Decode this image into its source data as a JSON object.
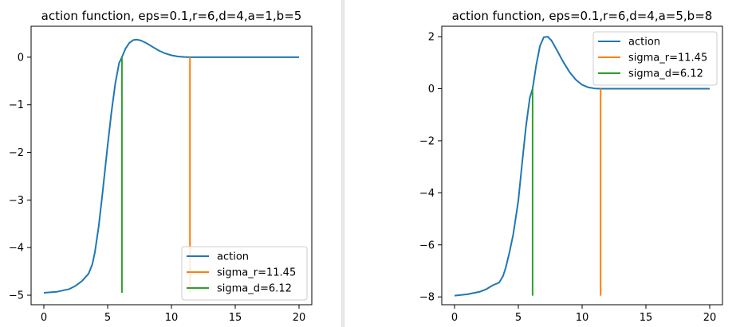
{
  "chart_data": [
    {
      "type": "line",
      "title": "action function, eps=0.1,r=6,d=4,a=1,b=5",
      "xlabel": "",
      "ylabel": "",
      "xlim": [
        -1,
        21
      ],
      "ylim": [
        -5.2,
        0.65
      ],
      "xticks": [
        "0",
        "5",
        "10",
        "15",
        "20"
      ],
      "xtick_values": [
        0,
        5,
        10,
        15,
        20
      ],
      "yticks": [
        "0",
        "−1",
        "−2",
        "−3",
        "−4",
        "−5"
      ],
      "ytick_values": [
        0,
        -1,
        -2,
        -3,
        -4,
        -5
      ],
      "legend_position": "lower-right",
      "series": [
        {
          "name": "action",
          "color": "#1f77b4",
          "x": [
            0,
            1,
            2,
            2.5,
            3,
            3.5,
            3.8,
            4,
            4.3,
            4.6,
            5,
            5.3,
            5.6,
            5.9,
            6.12,
            6.4,
            6.7,
            7,
            7.3,
            7.6,
            8,
            8.5,
            9,
            9.5,
            10,
            10.5,
            11,
            11.45,
            12,
            14,
            16,
            18,
            20
          ],
          "y": [
            -4.95,
            -4.93,
            -4.87,
            -4.8,
            -4.7,
            -4.55,
            -4.35,
            -4.1,
            -3.55,
            -2.85,
            -1.85,
            -1.15,
            -0.55,
            -0.12,
            0.0,
            0.18,
            0.3,
            0.36,
            0.37,
            0.35,
            0.3,
            0.22,
            0.14,
            0.08,
            0.04,
            0.015,
            0.005,
            0,
            0,
            0,
            0,
            0,
            0
          ]
        },
        {
          "name": "sigma_r=11.45",
          "color": "#ff7f0e",
          "x": [
            11.45,
            11.45
          ],
          "y": [
            0,
            -4.95
          ]
        },
        {
          "name": "sigma_d=6.12",
          "color": "#2ca02c",
          "x": [
            6.12,
            6.12
          ],
          "y": [
            0,
            -4.95
          ]
        }
      ]
    },
    {
      "type": "line",
      "title": "action function, eps=0.1,r=6,d=4,a=5,b=8",
      "xlabel": "",
      "ylabel": "",
      "xlim": [
        -1,
        21
      ],
      "ylim": [
        -8.3,
        2.4
      ],
      "xticks": [
        "0",
        "5",
        "10",
        "15",
        "20"
      ],
      "xtick_values": [
        0,
        5,
        10,
        15,
        20
      ],
      "yticks": [
        "2",
        "0",
        "−2",
        "−4",
        "−6",
        "−8"
      ],
      "ytick_values": [
        2,
        0,
        -2,
        -4,
        -6,
        -8
      ],
      "legend_position": "upper-right",
      "series": [
        {
          "name": "action",
          "color": "#1f77b4",
          "x": [
            0,
            1,
            2,
            2.5,
            3,
            3.5,
            3.8,
            4,
            4.3,
            4.6,
            5,
            5.3,
            5.6,
            5.9,
            6.12,
            6.4,
            6.7,
            7,
            7.3,
            7.6,
            8,
            8.5,
            9,
            9.5,
            10,
            10.5,
            11,
            11.45,
            12,
            14,
            16,
            18,
            20
          ],
          "y": [
            -7.95,
            -7.9,
            -7.8,
            -7.7,
            -7.55,
            -7.45,
            -7.2,
            -6.9,
            -6.3,
            -5.6,
            -4.3,
            -2.85,
            -1.45,
            -0.35,
            0.0,
            0.9,
            1.65,
            1.98,
            2.0,
            1.85,
            1.5,
            1.05,
            0.65,
            0.35,
            0.15,
            0.05,
            0.01,
            0,
            0,
            0,
            0,
            0,
            0
          ]
        },
        {
          "name": "sigma_r=11.45",
          "color": "#ff7f0e",
          "x": [
            11.45,
            11.45
          ],
          "y": [
            0,
            -7.95
          ]
        },
        {
          "name": "sigma_d=6.12",
          "color": "#2ca02c",
          "x": [
            6.12,
            6.12
          ],
          "y": [
            0,
            -7.95
          ]
        }
      ]
    }
  ]
}
